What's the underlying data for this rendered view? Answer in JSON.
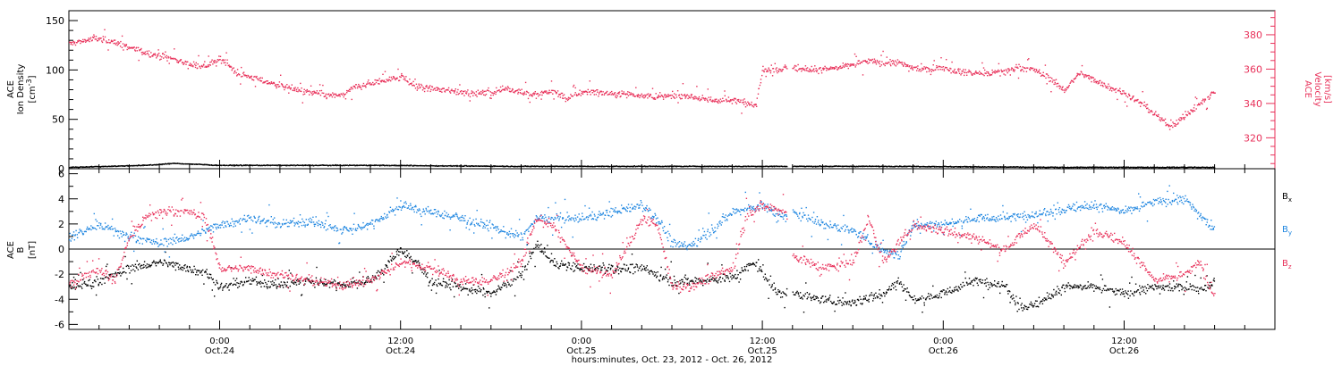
{
  "colors": {
    "red": "#e8315a",
    "blue": "#1f86e0",
    "black": "#000000"
  },
  "chart_data": [
    {
      "type": "scatter",
      "panel": "top",
      "left_axis_label": [
        "ACE",
        "Ion Density"
      ],
      "left_axis_units": "[cm",
      "left_axis_units_exp": "-3",
      "left_axis_units_close": "]",
      "right_axis_label": [
        "ACE",
        "Velocity",
        "[km/s]"
      ],
      "ylim_left": [
        0,
        160
      ],
      "yticks_left": [
        0,
        50,
        100,
        150
      ],
      "ylim_right": [
        302,
        394
      ],
      "yticks_right": [
        320,
        340,
        360,
        380
      ],
      "xlim_hours": [
        -10,
        70
      ],
      "series": [
        {
          "axis": "right",
          "color": "red",
          "points": [
            [
              -10,
              375
            ],
            [
              -9,
              377
            ],
            [
              -8,
              378
            ],
            [
              -7,
              376
            ],
            [
              -6,
              373
            ],
            [
              -5,
              370
            ],
            [
              -4,
              368
            ],
            [
              -3,
              366
            ],
            [
              -2,
              363
            ],
            [
              -1,
              362
            ],
            [
              0,
              366
            ],
            [
              0.5,
              364
            ],
            [
              1,
              358
            ],
            [
              2,
              356
            ],
            [
              3,
              353
            ],
            [
              4,
              351
            ],
            [
              5,
              348
            ],
            [
              6,
              347
            ],
            [
              7,
              345
            ],
            [
              8,
              345
            ],
            [
              9,
              350
            ],
            [
              10,
              352
            ],
            [
              11,
              354
            ],
            [
              12,
              356
            ],
            [
              13,
              350
            ],
            [
              14,
              349
            ],
            [
              15,
              348
            ],
            [
              16,
              347
            ],
            [
              17,
              346
            ],
            [
              18,
              347
            ],
            [
              19,
              349
            ],
            [
              20,
              347
            ],
            [
              21,
              345
            ],
            [
              22,
              348
            ],
            [
              23,
              343
            ],
            [
              24,
              347
            ],
            [
              25,
              347
            ],
            [
              26,
              346
            ],
            [
              27,
              346
            ],
            [
              28,
              345
            ],
            [
              29,
              344
            ],
            [
              30,
              345
            ],
            [
              31,
              345
            ],
            [
              32,
              343
            ],
            [
              33,
              342
            ],
            [
              34,
              342
            ],
            [
              35,
              341
            ],
            [
              35.5,
              339
            ],
            [
              36,
              360
            ],
            [
              37,
              360
            ],
            [
              37.5,
              361
            ],
            [
              39,
              360
            ],
            [
              40,
              360
            ],
            [
              41,
              361
            ],
            [
              42,
              363
            ],
            [
              43,
              365
            ],
            [
              44,
              364
            ],
            [
              45,
              364
            ],
            [
              46,
              361
            ],
            [
              47,
              360
            ],
            [
              48,
              361
            ],
            [
              49,
              359
            ],
            [
              50,
              358
            ],
            [
              51,
              358
            ],
            [
              52,
              359
            ],
            [
              53,
              361
            ],
            [
              54,
              360
            ],
            [
              55,
              355
            ],
            [
              56,
              348
            ],
            [
              57,
              358
            ],
            [
              58,
              354
            ],
            [
              59,
              350
            ],
            [
              60,
              346
            ],
            [
              61,
              341
            ],
            [
              62,
              334
            ],
            [
              63,
              327
            ],
            [
              64,
              333
            ],
            [
              65,
              340
            ],
            [
              66,
              347
            ]
          ]
        },
        {
          "axis": "left",
          "color": "black",
          "points": [
            [
              -10,
              2
            ],
            [
              -5,
              4
            ],
            [
              -3,
              6
            ],
            [
              0,
              4
            ],
            [
              10,
              4
            ],
            [
              20,
              3
            ],
            [
              30,
              3
            ],
            [
              37.5,
              3
            ],
            [
              45,
              3
            ],
            [
              55,
              2
            ],
            [
              66,
              2
            ]
          ]
        }
      ],
      "data_gap_hours": [
        37.6,
        38.0
      ]
    },
    {
      "type": "scatter",
      "panel": "bottom",
      "left_axis_label": [
        "ACE",
        "B"
      ],
      "left_axis_units": "[nT]",
      "ylim": [
        -6.4,
        6.4
      ],
      "yticks": [
        -6,
        -4,
        -2,
        0,
        2,
        4,
        6
      ],
      "zero_line": true,
      "legend": [
        {
          "label": "B",
          "sub": "x",
          "color": "black"
        },
        {
          "label": "B",
          "sub": "y",
          "color": "blue"
        },
        {
          "label": "B",
          "sub": "z",
          "color": "red"
        }
      ],
      "xlim_hours": [
        -10,
        70
      ],
      "series": [
        {
          "name": "Bx",
          "color": "black",
          "points": [
            [
              -10,
              -3
            ],
            [
              -8,
              -2.5
            ],
            [
              -6,
              -1.5
            ],
            [
              -4,
              -1
            ],
            [
              -2,
              -1.5
            ],
            [
              -1,
              -1.8
            ],
            [
              0,
              -3
            ],
            [
              2,
              -2.5
            ],
            [
              4,
              -2.8
            ],
            [
              6,
              -2.5
            ],
            [
              8,
              -2.8
            ],
            [
              10,
              -2.5
            ],
            [
              12,
              0
            ],
            [
              13,
              -1
            ],
            [
              14,
              -2.5
            ],
            [
              16,
              -3
            ],
            [
              18,
              -3.5
            ],
            [
              20,
              -2
            ],
            [
              21,
              0.5
            ],
            [
              22,
              -1
            ],
            [
              24,
              -1.5
            ],
            [
              26,
              -1.5
            ],
            [
              28,
              -1.5
            ],
            [
              30,
              -2.5
            ],
            [
              32,
              -2.5
            ],
            [
              34,
              -2.2
            ],
            [
              35.5,
              -1
            ],
            [
              36,
              -2
            ],
            [
              37,
              -3.5
            ],
            [
              38,
              -3.5
            ],
            [
              40,
              -4
            ],
            [
              42,
              -4.2
            ],
            [
              44,
              -3.5
            ],
            [
              45,
              -2.5
            ],
            [
              46,
              -4
            ],
            [
              48,
              -3.5
            ],
            [
              50,
              -2.5
            ],
            [
              52,
              -2.8
            ],
            [
              53,
              -4.5
            ],
            [
              54,
              -4.5
            ],
            [
              56,
              -3
            ],
            [
              58,
              -3
            ],
            [
              60,
              -3.5
            ],
            [
              62,
              -3
            ],
            [
              64,
              -3
            ],
            [
              65,
              -3.2
            ],
            [
              66,
              -2.5
            ]
          ]
        },
        {
          "name": "By",
          "color": "blue",
          "points": [
            [
              -10,
              1
            ],
            [
              -8,
              2
            ],
            [
              -6,
              1
            ],
            [
              -4,
              0.5
            ],
            [
              -2,
              1
            ],
            [
              0,
              2
            ],
            [
              2,
              2.5
            ],
            [
              4,
              2
            ],
            [
              6,
              2.3
            ],
            [
              8,
              1.5
            ],
            [
              10,
              2
            ],
            [
              12,
              3.5
            ],
            [
              14,
              3
            ],
            [
              16,
              2.5
            ],
            [
              18,
              1.8
            ],
            [
              20,
              1
            ],
            [
              21,
              2.5
            ],
            [
              22,
              2.5
            ],
            [
              24,
              2.5
            ],
            [
              26,
              3
            ],
            [
              28,
              3.5
            ],
            [
              29,
              2.5
            ],
            [
              30,
              0.5
            ],
            [
              31,
              0.2
            ],
            [
              32,
              1
            ],
            [
              34,
              3
            ],
            [
              36,
              3.5
            ],
            [
              37.5,
              2.5
            ],
            [
              38,
              3
            ],
            [
              40,
              2
            ],
            [
              42,
              1.5
            ],
            [
              44,
              0
            ],
            [
              45,
              -0.5
            ],
            [
              46,
              2
            ],
            [
              48,
              2
            ],
            [
              50,
              2.5
            ],
            [
              52,
              2.5
            ],
            [
              54,
              2.8
            ],
            [
              56,
              3.2
            ],
            [
              58,
              3.5
            ],
            [
              60,
              3
            ],
            [
              62,
              3.8
            ],
            [
              64,
              4
            ],
            [
              66,
              1.5
            ]
          ]
        },
        {
          "name": "Bz",
          "color": "red",
          "points": [
            [
              -10,
              -2.8
            ],
            [
              -8,
              -1.5
            ],
            [
              -7,
              -2.5
            ],
            [
              -6,
              1
            ],
            [
              -5,
              2.5
            ],
            [
              -4,
              3
            ],
            [
              -2,
              3
            ],
            [
              -1,
              2.5
            ],
            [
              0,
              -1.5
            ],
            [
              2,
              -1.5
            ],
            [
              4,
              -2
            ],
            [
              6,
              -2.5
            ],
            [
              8,
              -2.8
            ],
            [
              10,
              -2.5
            ],
            [
              12,
              -1
            ],
            [
              14,
              -1.5
            ],
            [
              16,
              -2.5
            ],
            [
              18,
              -2.5
            ],
            [
              20,
              -1
            ],
            [
              21,
              2.5
            ],
            [
              22,
              2
            ],
            [
              24,
              -1.5
            ],
            [
              26,
              -2
            ],
            [
              28,
              2.5
            ],
            [
              29,
              2
            ],
            [
              30,
              -3
            ],
            [
              31,
              -3
            ],
            [
              32,
              -2.5
            ],
            [
              34,
              -1.5
            ],
            [
              35,
              3
            ],
            [
              36,
              3.5
            ],
            [
              37.5,
              3
            ],
            [
              38,
              -0.5
            ],
            [
              40,
              -1.5
            ],
            [
              42,
              -1
            ],
            [
              43,
              2.5
            ],
            [
              44,
              -1
            ],
            [
              46,
              2
            ],
            [
              48,
              1.5
            ],
            [
              50,
              1
            ],
            [
              52,
              0
            ],
            [
              54,
              2
            ],
            [
              56,
              -1
            ],
            [
              58,
              1.5
            ],
            [
              60,
              0.5
            ],
            [
              62,
              -2.5
            ],
            [
              64,
              -2
            ],
            [
              65,
              -1
            ],
            [
              66,
              -4
            ]
          ]
        }
      ],
      "data_gap_hours": [
        37.6,
        38.0
      ]
    }
  ],
  "x_axis": {
    "ticks": [
      {
        "hour": 0,
        "time": "0:00",
        "date": "Oct.24"
      },
      {
        "hour": 12,
        "time": "12:00",
        "date": "Oct.24"
      },
      {
        "hour": 24,
        "time": "0:00",
        "date": "Oct.25"
      },
      {
        "hour": 36,
        "time": "12:00",
        "date": "Oct.25"
      },
      {
        "hour": 48,
        "time": "0:00",
        "date": "Oct.26"
      },
      {
        "hour": 60,
        "time": "12:00",
        "date": "Oct.26"
      }
    ],
    "minor_tick_step_hours": 2,
    "title": "hours:minutes, Oct. 23, 2012 - Oct. 26, 2012"
  }
}
